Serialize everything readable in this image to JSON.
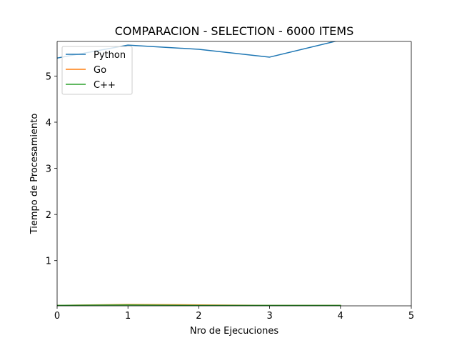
{
  "chart_data": {
    "type": "line",
    "title": "COMPARACION - SELECTION - 6000 ITEMS",
    "xlabel": "Nro de Ejecuciones",
    "ylabel": "Tiempo de Procesamiento",
    "xlim": [
      0,
      5
    ],
    "ylim": [
      0.02,
      5.75
    ],
    "xticks": [
      0,
      1,
      2,
      3,
      4,
      5
    ],
    "xtick_labels": [
      "0",
      "1",
      "2",
      "3",
      "4",
      "5"
    ],
    "yticks": [
      1,
      2,
      3,
      4,
      5
    ],
    "ytick_labels": [
      "1",
      "2",
      "3",
      "4",
      "5"
    ],
    "grid": false,
    "legend_position": "upper-left",
    "x": [
      0,
      1,
      2,
      3,
      4
    ],
    "series": [
      {
        "name": "Python",
        "color": "#1f77b4",
        "values": [
          5.39,
          5.67,
          5.58,
          5.41,
          5.78
        ]
      },
      {
        "name": "Go",
        "color": "#ff7f0e",
        "values": [
          0.03,
          0.05,
          0.04,
          0.03,
          0.03
        ]
      },
      {
        "name": "C++",
        "color": "#2ca02c",
        "values": [
          0.03,
          0.04,
          0.03,
          0.03,
          0.03
        ]
      }
    ]
  }
}
